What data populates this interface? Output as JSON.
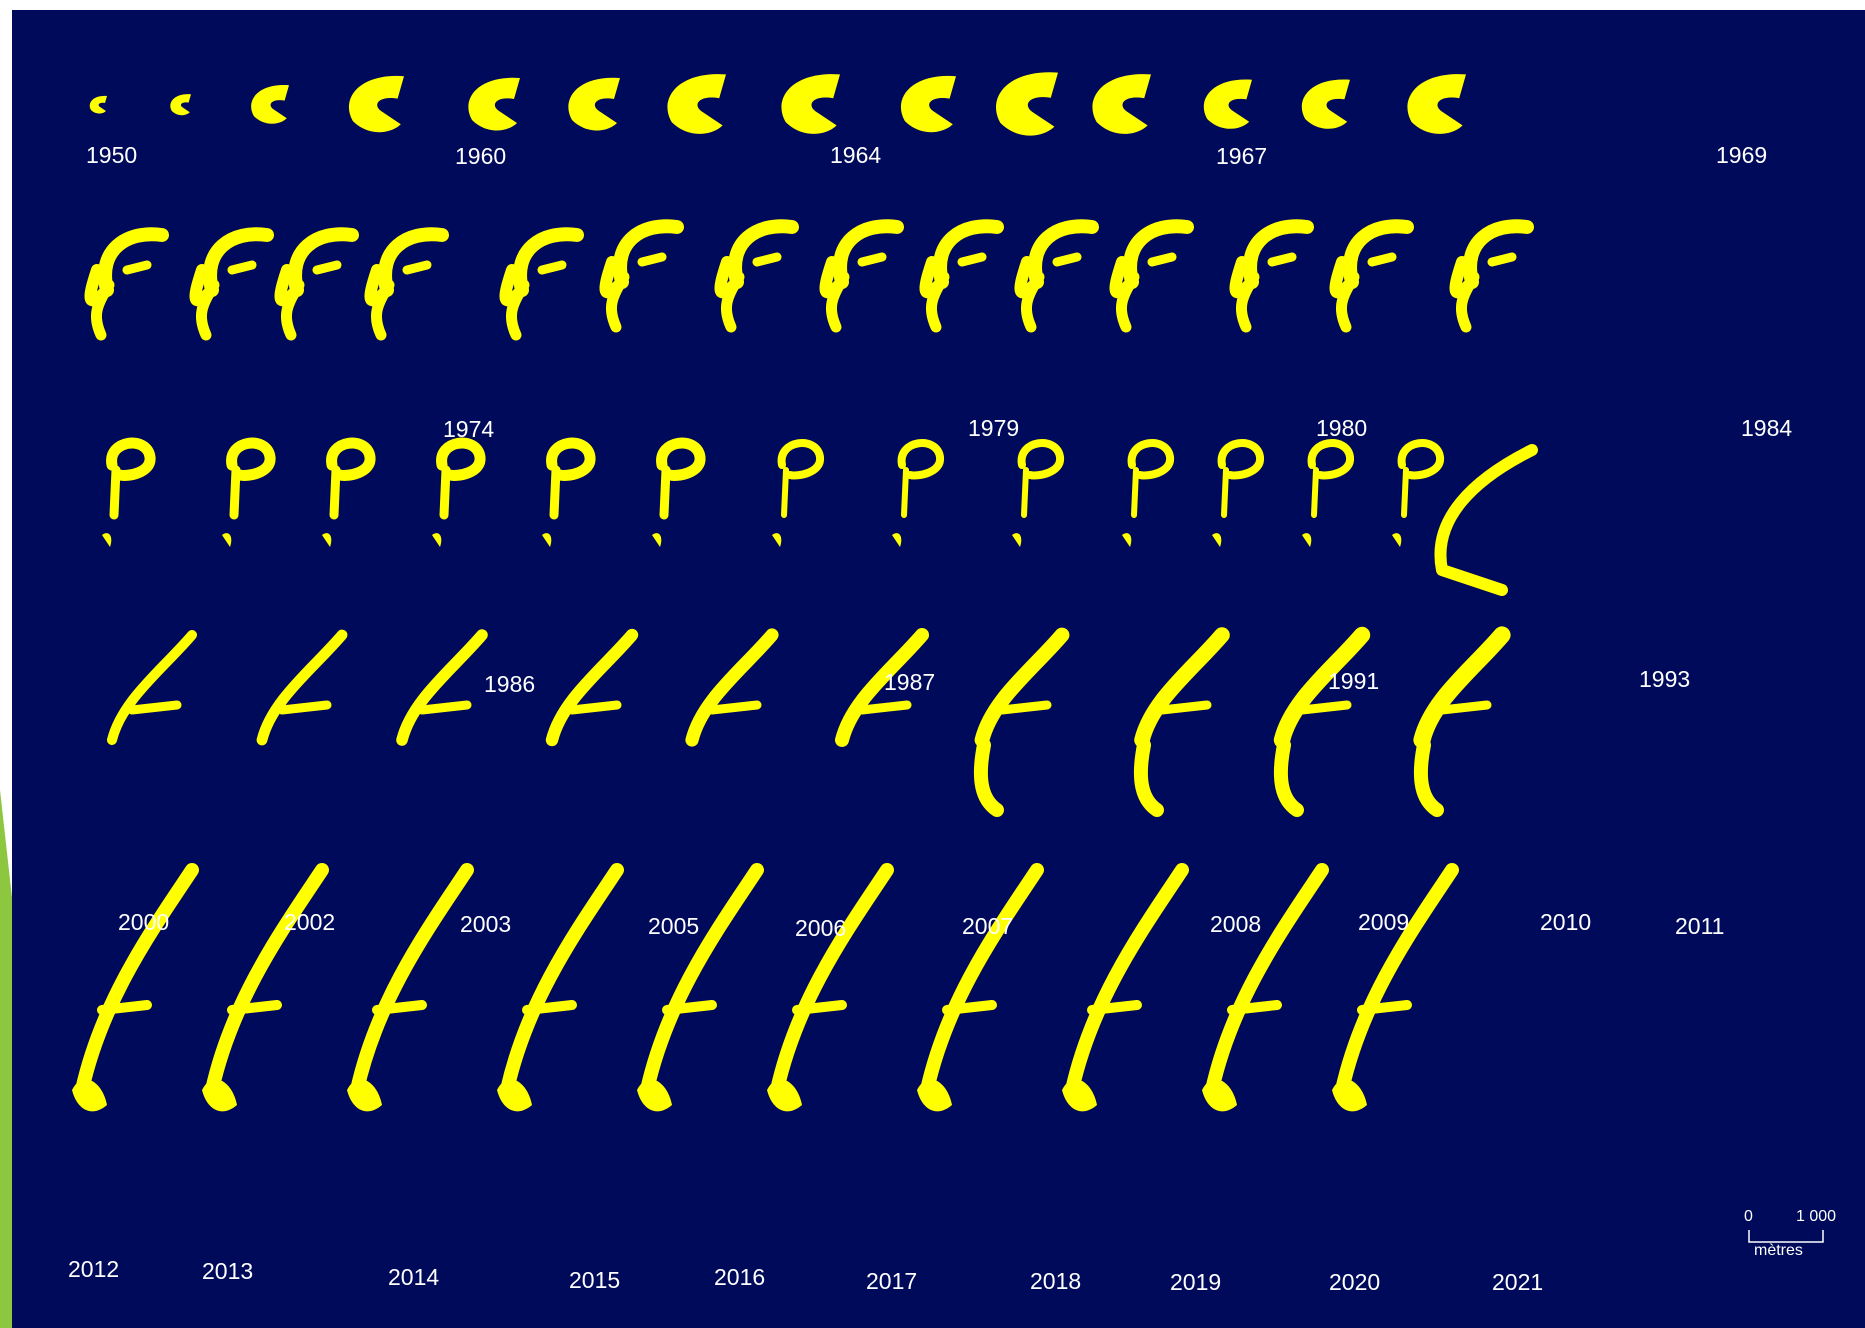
{
  "colors": {
    "background": "#000a5a",
    "island": "#ffff00",
    "label": "#ffffff",
    "accent": "#8dc63f"
  },
  "year_labels": [
    "1950",
    "1960",
    "1964",
    "1967",
    "1969",
    "1974",
    "1979",
    "1980",
    "1984",
    "1986",
    "1987",
    "1991",
    "1993",
    "2000",
    "2002",
    "2003",
    "2005",
    "2006",
    "2007",
    "2008",
    "2009",
    "2010",
    "2011",
    "2012",
    "2013",
    "2014",
    "2015",
    "2016",
    "2017",
    "2018",
    "2019",
    "2020",
    "2021"
  ],
  "scale": {
    "start": "0",
    "end": "1 000",
    "unit": "mètres"
  }
}
